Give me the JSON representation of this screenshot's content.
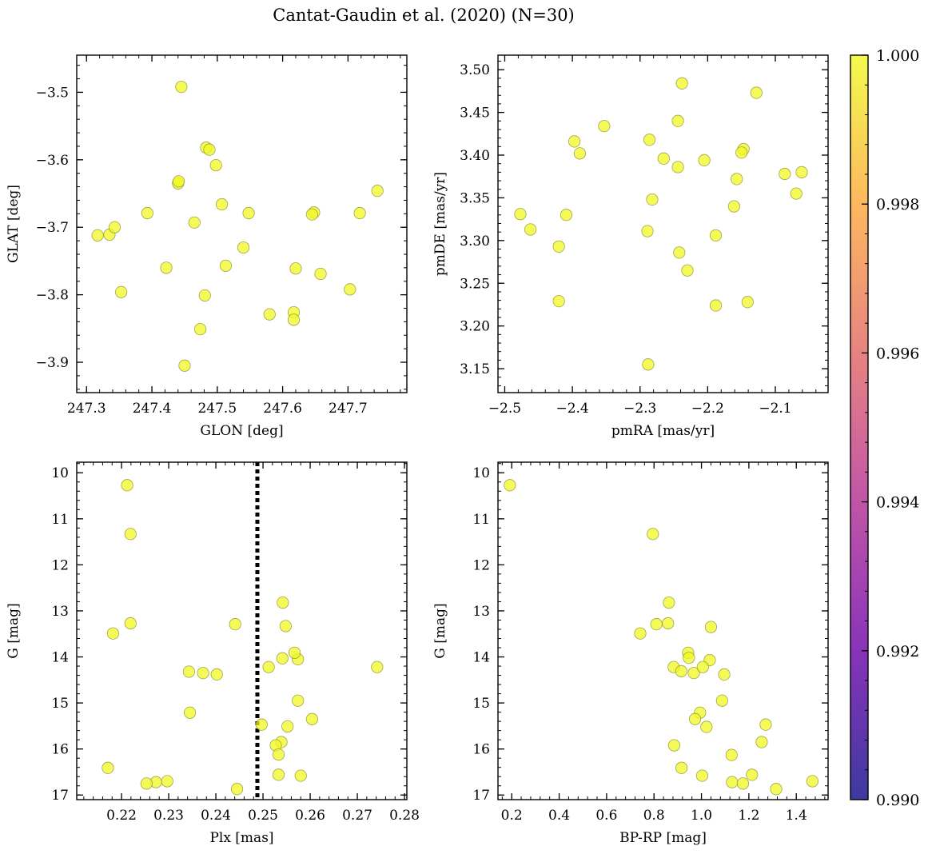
{
  "figure": {
    "title": "Cantat-Gaudin et al. (2020) (N=30)"
  },
  "colorbar": {
    "min": 0.99,
    "max": 1.0,
    "colormap": [
      "#0d0887",
      "#6a00a8",
      "#b12a90",
      "#e16462",
      "#fca636",
      "#f0f921"
    ],
    "alpha": 0.8,
    "ticks": [
      0.99,
      0.992,
      0.994,
      0.996,
      0.998,
      1.0
    ],
    "tick_labels": [
      "0.990",
      "0.992",
      "0.994",
      "0.996",
      "0.998",
      "1.000"
    ]
  },
  "marker": {
    "color": "#f0f921",
    "alpha": 0.75,
    "edgecolor": "#8c8c3a"
  },
  "chart_data": [
    {
      "type": "scatter",
      "xlabel": "GLON [deg]",
      "ylabel": "GLAT [deg]",
      "xlim": [
        247.285,
        247.79
      ],
      "ylim": [
        -3.945,
        -3.445
      ],
      "y_inverted": false,
      "xticks": [
        247.3,
        247.4,
        247.5,
        247.6,
        247.7
      ],
      "xtick_labels": [
        "247.3",
        "247.4",
        "247.5",
        "247.6",
        "247.7"
      ],
      "xminor": 0.02,
      "yticks": [
        -3.5,
        -3.6,
        -3.7,
        -3.8,
        -3.9
      ],
      "ytick_labels": [
        "−3.5",
        "−3.6",
        "−3.7",
        "−3.8",
        "−3.9"
      ],
      "yminor": 0.02,
      "x": [
        247.445,
        247.483,
        247.488,
        247.498,
        247.44,
        247.441,
        247.507,
        247.393,
        247.465,
        247.548,
        247.648,
        247.645,
        247.745,
        247.718,
        247.317,
        247.335,
        247.343,
        247.54,
        247.513,
        247.422,
        247.62,
        247.658,
        247.703,
        247.353,
        247.481,
        247.58,
        247.617,
        247.617,
        247.474,
        247.45
      ],
      "y": [
        -3.492,
        -3.582,
        -3.585,
        -3.608,
        -3.635,
        -3.632,
        -3.666,
        -3.679,
        -3.693,
        -3.679,
        -3.678,
        -3.681,
        -3.646,
        -3.679,
        -3.712,
        -3.711,
        -3.7,
        -3.73,
        -3.757,
        -3.76,
        -3.761,
        -3.769,
        -3.792,
        -3.796,
        -3.801,
        -3.829,
        -3.826,
        -3.837,
        -3.851,
        -3.905
      ]
    },
    {
      "type": "scatter",
      "xlabel": "pmRA [mas/yr]",
      "ylabel": "pmDE [mas/yr]",
      "xlim": [
        -2.51,
        -2.022
      ],
      "ylim": [
        3.122,
        3.517
      ],
      "y_inverted": false,
      "xticks": [
        -2.5,
        -2.4,
        -2.3,
        -2.2,
        -2.1
      ],
      "xtick_labels": [
        "−2.5",
        "−2.4",
        "−2.3",
        "−2.2",
        "−2.1"
      ],
      "xminor": 0.02,
      "yticks": [
        3.15,
        3.2,
        3.25,
        3.3,
        3.35,
        3.4,
        3.45,
        3.5
      ],
      "ytick_labels": [
        "3.15",
        "3.20",
        "3.25",
        "3.30",
        "3.35",
        "3.40",
        "3.45",
        "3.50"
      ],
      "yminor": 0.01,
      "x": [
        -2.238,
        -2.128,
        -2.353,
        -2.244,
        -2.397,
        -2.286,
        -2.389,
        -2.265,
        -2.147,
        -2.15,
        -2.205,
        -2.244,
        -2.157,
        -2.086,
        -2.061,
        -2.069,
        -2.161,
        -2.282,
        -2.477,
        -2.409,
        -2.462,
        -2.289,
        -2.188,
        -2.42,
        -2.242,
        -2.23,
        -2.42,
        -2.188,
        -2.141,
        -2.288
      ],
      "y": [
        3.484,
        3.473,
        3.434,
        3.44,
        3.416,
        3.418,
        3.402,
        3.396,
        3.407,
        3.403,
        3.394,
        3.386,
        3.372,
        3.378,
        3.38,
        3.355,
        3.34,
        3.348,
        3.331,
        3.33,
        3.313,
        3.311,
        3.306,
        3.293,
        3.286,
        3.265,
        3.229,
        3.224,
        3.228,
        3.155
      ]
    },
    {
      "type": "scatter",
      "xlabel": "Plx [mas]",
      "ylabel": "G [mag]",
      "xlim": [
        0.2105,
        0.2805
      ],
      "ylim": [
        17.1,
        9.77
      ],
      "y_inverted": true,
      "vline": {
        "x": 0.2488,
        "style": "dotted",
        "color": "#000000"
      },
      "xticks": [
        0.22,
        0.23,
        0.24,
        0.25,
        0.26,
        0.27,
        0.28
      ],
      "xtick_labels": [
        "0.22",
        "0.23",
        "0.24",
        "0.25",
        "0.26",
        "0.27",
        "0.28"
      ],
      "xminor": 0.002,
      "yticks": [
        10,
        11,
        12,
        13,
        14,
        15,
        16,
        17
      ],
      "ytick_labels": [
        "10",
        "11",
        "12",
        "13",
        "14",
        "15",
        "16",
        "17"
      ],
      "yminor": 0.2,
      "x": [
        0.2212,
        0.2219,
        0.2542,
        0.2219,
        0.2182,
        0.2441,
        0.2548,
        0.2574,
        0.2742,
        0.2512,
        0.2567,
        0.2343,
        0.2373,
        0.2402,
        0.2574,
        0.2345,
        0.2604,
        0.2552,
        0.2497,
        0.2539,
        0.2527,
        0.2533,
        0.2171,
        0.2533,
        0.258,
        0.2273,
        0.2253,
        0.2297,
        0.2445,
        0.2541
      ],
      "y": [
        10.27,
        11.33,
        12.82,
        13.27,
        13.49,
        13.29,
        13.33,
        14.05,
        14.22,
        14.22,
        13.91,
        14.32,
        14.35,
        14.38,
        14.95,
        15.21,
        15.35,
        15.51,
        15.47,
        15.85,
        15.92,
        16.12,
        16.41,
        16.56,
        16.58,
        16.72,
        16.75,
        16.7,
        16.87,
        14.03
      ]
    },
    {
      "type": "scatter",
      "xlabel": "BP-RP [mag]",
      "ylabel": "G [mag]",
      "xlim": [
        0.142,
        1.534
      ],
      "ylim": [
        17.1,
        9.77
      ],
      "y_inverted": true,
      "xticks": [
        0.2,
        0.4,
        0.6,
        0.8,
        1.0,
        1.2,
        1.4
      ],
      "xtick_labels": [
        "0.2",
        "0.4",
        "0.6",
        "0.8",
        "1.0",
        "1.2",
        "1.4"
      ],
      "xminor": 0.04,
      "yticks": [
        10,
        11,
        12,
        13,
        14,
        15,
        16,
        17
      ],
      "ytick_labels": [
        "10",
        "11",
        "12",
        "13",
        "14",
        "15",
        "16",
        "17"
      ],
      "yminor": 0.2,
      "x": [
        0.192,
        0.795,
        0.863,
        0.742,
        0.81,
        0.859,
        1.04,
        0.944,
        0.947,
        1.035,
        0.883,
        0.915,
        0.968,
        1.006,
        1.096,
        1.087,
        0.994,
        0.973,
        1.021,
        1.271,
        1.254,
        0.885,
        1.127,
        0.916,
        1.003,
        1.213,
        1.129,
        1.175,
        1.315,
        1.468
      ],
      "y": [
        10.27,
        11.33,
        12.82,
        13.49,
        13.29,
        13.27,
        13.35,
        13.91,
        14.02,
        14.07,
        14.22,
        14.31,
        14.35,
        14.22,
        14.38,
        14.95,
        15.21,
        15.35,
        15.52,
        15.47,
        15.85,
        15.92,
        16.13,
        16.41,
        16.58,
        16.56,
        16.72,
        16.75,
        16.87,
        16.7
      ]
    }
  ]
}
